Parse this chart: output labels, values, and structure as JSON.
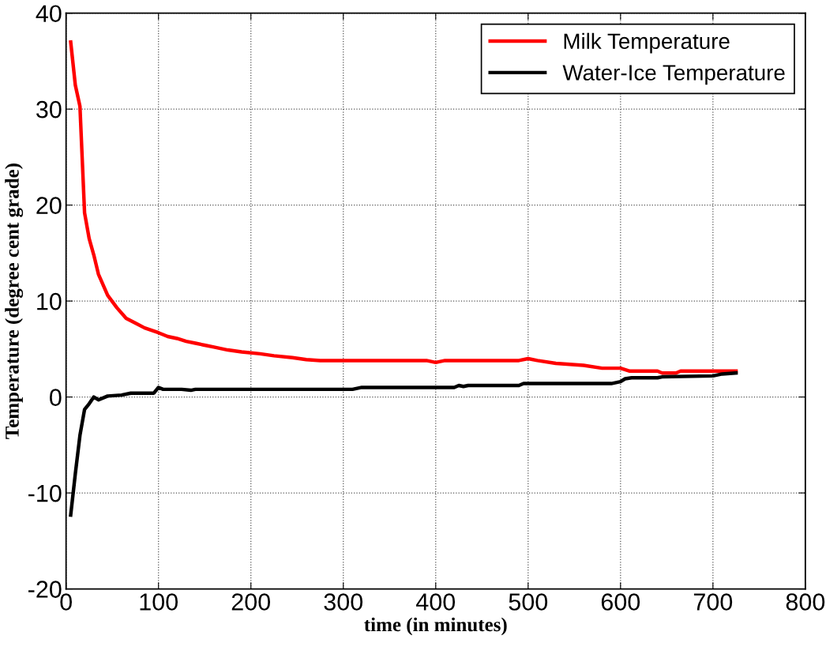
{
  "chart_data": {
    "type": "line",
    "xlabel": "time (in minutes)",
    "ylabel": "Temperature (degree cent grade)",
    "xlim": [
      0,
      800
    ],
    "xticks": [
      0,
      100,
      200,
      300,
      400,
      500,
      600,
      700,
      800
    ],
    "ylim": [
      -20,
      40
    ],
    "yticks": [
      -20,
      -10,
      0,
      10,
      20,
      30,
      40
    ],
    "grid": true,
    "legend": "top right",
    "marker": "none",
    "line_style": "solid",
    "series": [
      {
        "name": "Milk Temperature",
        "color": "#ff0000",
        "x": [
          5,
          10,
          15,
          20,
          25,
          30,
          35,
          45,
          55,
          65,
          75,
          85,
          100,
          110,
          120,
          130,
          140,
          150,
          160,
          175,
          190,
          210,
          225,
          245,
          260,
          275,
          390,
          400,
          410,
          490,
          500,
          510,
          530,
          560,
          580,
          600,
          610,
          640,
          645,
          660,
          665,
          725
        ],
        "values": [
          37,
          32.5,
          30.3,
          19.2,
          16.5,
          14.8,
          12.8,
          10.6,
          9.3,
          8.2,
          7.7,
          7.2,
          6.7,
          6.3,
          6.1,
          5.8,
          5.6,
          5.4,
          5.2,
          4.9,
          4.7,
          4.5,
          4.3,
          4.1,
          3.9,
          3.8,
          3.8,
          3.6,
          3.8,
          3.8,
          4.0,
          3.8,
          3.5,
          3.3,
          3.0,
          3.0,
          2.7,
          2.7,
          2.5,
          2.5,
          2.7,
          2.7
        ]
      },
      {
        "name": "Water-Ice Temperature",
        "color": "#000000",
        "x": [
          5,
          10,
          15,
          20,
          25,
          30,
          35,
          45,
          60,
          70,
          95,
          100,
          105,
          125,
          135,
          140,
          310,
          320,
          420,
          425,
          430,
          435,
          490,
          495,
          590,
          600,
          605,
          612,
          640,
          645,
          700,
          710,
          725
        ],
        "values": [
          -12.3,
          -8,
          -4,
          -1.3,
          -0.7,
          0,
          -0.3,
          0.1,
          0.2,
          0.4,
          0.4,
          1.0,
          0.8,
          0.8,
          0.7,
          0.8,
          0.8,
          1.0,
          1.0,
          1.2,
          1.1,
          1.2,
          1.2,
          1.4,
          1.4,
          1.6,
          1.9,
          2.0,
          2.0,
          2.1,
          2.2,
          2.4,
          2.5
        ]
      }
    ]
  }
}
